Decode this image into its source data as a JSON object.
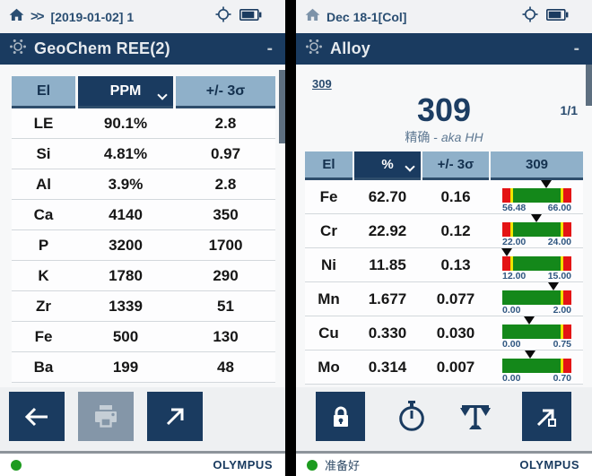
{
  "colors": {
    "navy": "#1a3b60",
    "header_blue": "#8fb0c9",
    "pass_green": "#14881a",
    "fail_red": "#e41414",
    "warn_yellow": "#efe400",
    "ready_green": "#1d9b1f"
  },
  "left_panel": {
    "status_bar": {
      "breadcrumb": "[2019-01-02] 1"
    },
    "title_bar": {
      "title": "GeoChem REE(2)",
      "minimize": "-"
    },
    "table": {
      "headers": {
        "el": "El",
        "unit": "PPM",
        "sigma": "+/- 3σ"
      },
      "rows": [
        {
          "el": "LE",
          "value": "90.1%",
          "sigma": "2.8"
        },
        {
          "el": "Si",
          "value": "4.81%",
          "sigma": "0.97"
        },
        {
          "el": "Al",
          "value": "3.9%",
          "sigma": "2.8"
        },
        {
          "el": "Ca",
          "value": "4140",
          "sigma": "350"
        },
        {
          "el": "P",
          "value": "3200",
          "sigma": "1700"
        },
        {
          "el": "K",
          "value": "1780",
          "sigma": "290"
        },
        {
          "el": "Zr",
          "value": "1339",
          "sigma": "51"
        },
        {
          "el": "Fe",
          "value": "500",
          "sigma": "130"
        },
        {
          "el": "Ba",
          "value": "199",
          "sigma": "48"
        }
      ]
    },
    "footer": {
      "brand": "OLYMPUS"
    }
  },
  "right_panel": {
    "status_bar": {
      "breadcrumb": "Dec 18-1[Col]"
    },
    "title_bar": {
      "title": "Alloy",
      "minimize": "-"
    },
    "sample": {
      "link": "309",
      "name": "309",
      "page": "1/1",
      "grade_match": "精确 - ",
      "grade_alias": "aka HH"
    },
    "table": {
      "headers": {
        "el": "El",
        "unit": "%",
        "sigma": "+/- 3σ",
        "grade": "309"
      },
      "rows": [
        {
          "el": "Fe",
          "value": "62.70",
          "sigma": "0.16",
          "lo": "56.48",
          "hi": "66.00",
          "marker": 0.64,
          "left_red": true
        },
        {
          "el": "Cr",
          "value": "22.92",
          "sigma": "0.12",
          "lo": "22.00",
          "hi": "24.00",
          "marker": 0.49,
          "left_red": true
        },
        {
          "el": "Ni",
          "value": "11.85",
          "sigma": "0.13",
          "lo": "12.00",
          "hi": "15.00",
          "marker": 0.07,
          "left_red": true
        },
        {
          "el": "Mn",
          "value": "1.677",
          "sigma": "0.077",
          "lo": "0.00",
          "hi": "2.00",
          "marker": 0.74,
          "left_red": false
        },
        {
          "el": "Cu",
          "value": "0.330",
          "sigma": "0.030",
          "lo": "0.00",
          "hi": "0.75",
          "marker": 0.39,
          "left_red": false
        },
        {
          "el": "Mo",
          "value": "0.314",
          "sigma": "0.007",
          "lo": "0.00",
          "hi": "0.70",
          "marker": 0.4,
          "left_red": false
        }
      ]
    },
    "footer": {
      "status": "准备好",
      "brand": "OLYMPUS"
    }
  }
}
